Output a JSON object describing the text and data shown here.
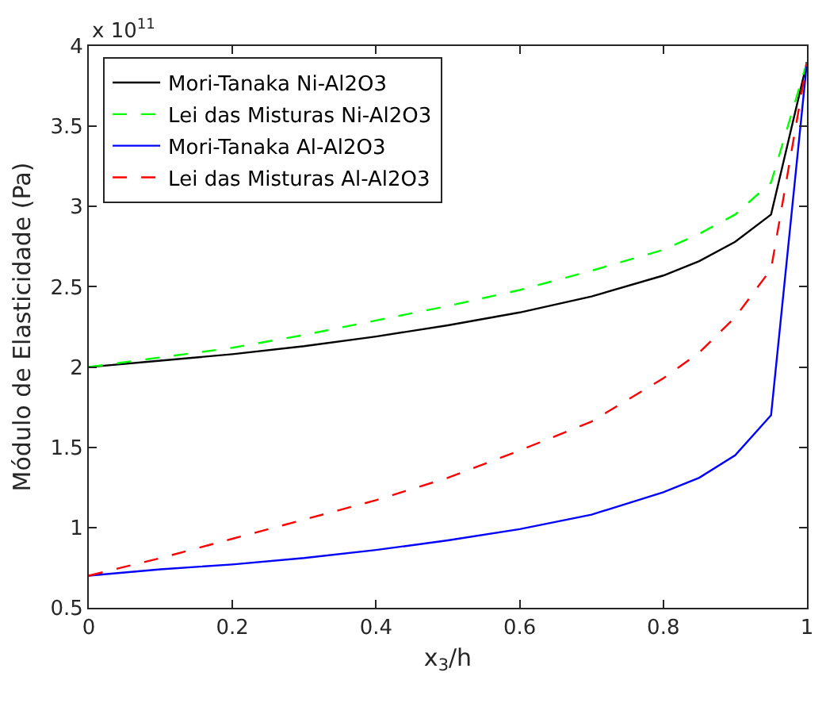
{
  "chart_data": {
    "type": "line",
    "xlabel": "x$_{3}$/h",
    "ylabel": "Módulo de Elasticidade (Pa)",
    "annotations": [
      "x 10$^{11}$"
    ],
    "x": [
      0,
      0.1,
      0.2,
      0.3,
      0.4,
      0.5,
      0.6,
      0.7,
      0.8,
      0.85,
      0.9,
      0.95,
      1
    ],
    "series": [
      {
        "name": "Mori-Tanaka Ni-Al2O3",
        "color": "#000000",
        "line_style": "solid",
        "values": [
          2.0,
          2.04,
          2.08,
          2.13,
          2.19,
          2.26,
          2.34,
          2.44,
          2.57,
          2.66,
          2.78,
          2.95,
          3.9
        ]
      },
      {
        "name": "Lei das Misturas Ni-Al2O3",
        "color": "#00ff00",
        "line_style": "dashed",
        "values": [
          2.0,
          2.06,
          2.12,
          2.2,
          2.29,
          2.38,
          2.48,
          2.6,
          2.73,
          2.83,
          2.95,
          3.15,
          3.9
        ]
      },
      {
        "name": "Mori-Tanaka Al-Al2O3",
        "color": "#0000ff",
        "line_style": "solid",
        "values": [
          0.7,
          0.74,
          0.77,
          0.81,
          0.86,
          0.92,
          0.99,
          1.08,
          1.22,
          1.31,
          1.45,
          1.7,
          3.9
        ]
      },
      {
        "name": "Lei das Misturas Al-Al2O3",
        "color": "#ff0000",
        "line_style": "dashed",
        "values": [
          0.7,
          0.81,
          0.93,
          1.05,
          1.17,
          1.31,
          1.48,
          1.66,
          1.93,
          2.09,
          2.31,
          2.61,
          3.9
        ]
      }
    ],
    "xlim": [
      0,
      1
    ],
    "xticks": [
      0,
      0.2,
      0.4,
      0.6,
      0.8,
      1
    ],
    "ylim": [
      0.5,
      4
    ],
    "yticks": [
      0.5,
      1,
      1.5,
      2,
      2.5,
      3,
      3.5,
      4
    ],
    "grid": false,
    "legend": "top left"
  }
}
